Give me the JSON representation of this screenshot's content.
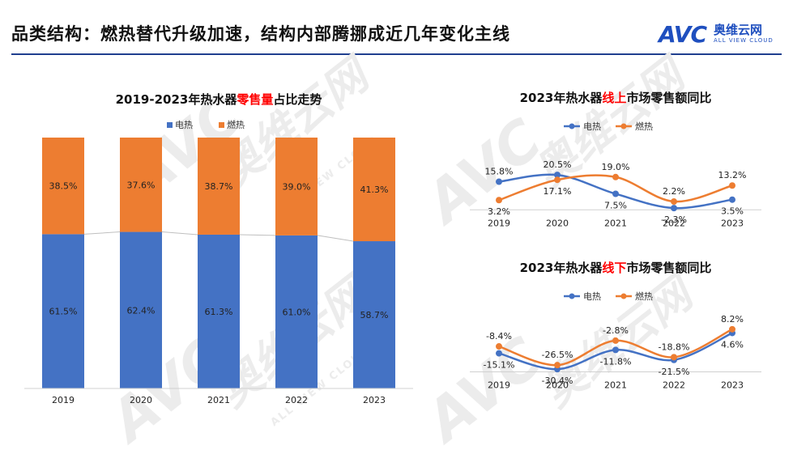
{
  "header": {
    "title": "品类结构：燃热替代升级加速，结构内部腾挪成近几年变化主线",
    "logo_mark": "AVC",
    "logo_cn": "奥维云网",
    "logo_en": "ALL VIEW CLOUD"
  },
  "watermark": {
    "text": "奥维云网",
    "sub": "ALL VIEW CLOUD",
    "mark": "AVC"
  },
  "colors": {
    "electric": "#4472c4",
    "gas": "#ed7d31",
    "accent": "#ff0000",
    "rule": "#1f3f8f"
  },
  "chart_data": [
    {
      "type": "bar",
      "stacked": true,
      "percent": true,
      "title_parts": [
        "2019-2023年热水器",
        "零售量",
        "占比走势"
      ],
      "categories": [
        "2019",
        "2020",
        "2021",
        "2022",
        "2023"
      ],
      "series": [
        {
          "name": "电热",
          "values": [
            61.5,
            62.4,
            61.3,
            61.0,
            58.7
          ],
          "labels": [
            "61.5%",
            "62.4%",
            "61.3%",
            "61.0%",
            "58.7%"
          ]
        },
        {
          "name": "燃热",
          "values": [
            38.5,
            37.6,
            38.7,
            39.0,
            41.3
          ],
          "labels": [
            "38.5%",
            "37.6%",
            "38.7%",
            "39.0%",
            "41.3%"
          ]
        }
      ],
      "ylim": [
        0,
        100
      ],
      "legend": "top-center",
      "grid": false
    },
    {
      "type": "line",
      "title_parts": [
        "2023年热水器",
        "线上",
        "市场零售额同比"
      ],
      "categories": [
        "2019",
        "2020",
        "2021",
        "2022",
        "2023"
      ],
      "series": [
        {
          "name": "电热",
          "values": [
            15.8,
            20.5,
            7.5,
            -2.3,
            3.5
          ],
          "labels": [
            "15.8%",
            "20.5%",
            "7.5%",
            "-2.3%",
            "3.5%"
          ]
        },
        {
          "name": "燃热",
          "values": [
            3.2,
            17.1,
            19.0,
            2.2,
            13.2
          ],
          "labels": [
            "3.2%",
            "17.1%",
            "19.0%",
            "2.2%",
            "13.2%"
          ]
        }
      ],
      "ylim": [
        -5,
        25
      ],
      "legend": "top-center",
      "grid": false
    },
    {
      "type": "line",
      "title_parts": [
        "2023年热水器",
        "线下",
        "市场零售额同比"
      ],
      "categories": [
        "2019",
        "2020",
        "2021",
        "2022",
        "2023"
      ],
      "series": [
        {
          "name": "电热",
          "values": [
            -15.1,
            -30.4,
            -11.8,
            -21.5,
            4.6
          ],
          "labels": [
            "-15.1%",
            "-30.4%",
            "-11.8%",
            "-21.5%",
            "4.6%"
          ]
        },
        {
          "name": "燃热",
          "values": [
            -8.4,
            -26.5,
            -2.8,
            -18.8,
            8.2
          ],
          "labels": [
            "-8.4%",
            "-26.5%",
            "-2.8%",
            "-18.8%",
            "8.2%"
          ]
        }
      ],
      "ylim": [
        -35,
        12
      ],
      "legend": "top-center",
      "grid": false
    }
  ]
}
